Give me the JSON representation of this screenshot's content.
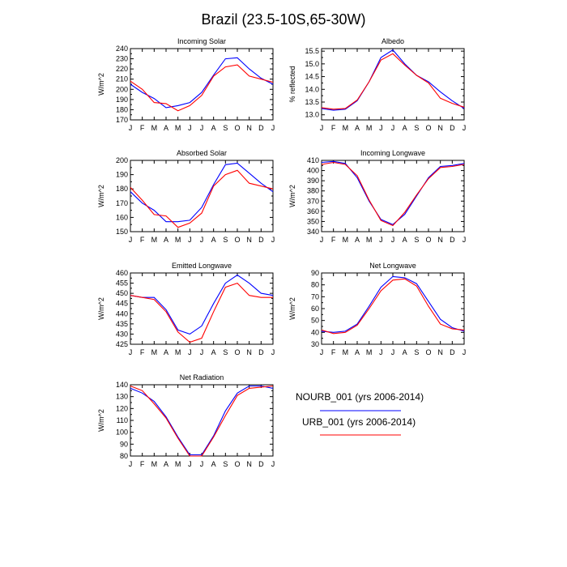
{
  "figure_title": "Brazil (23.5-10S,65-30W)",
  "colors": {
    "nourb": "#0000ff",
    "urb": "#ff0000",
    "axis": "#000000"
  },
  "legend": {
    "entries": [
      {
        "label": "NOURB_001 (yrs 2006-2014)",
        "color": "#0000ff"
      },
      {
        "label": "URB_001 (yrs 2006-2014)",
        "color": "#ff0000"
      }
    ]
  },
  "chart_data": [
    {
      "type": "line",
      "title": "Incoming Solar",
      "xlabel": "",
      "ylabel": "W/m^2",
      "categories": [
        "J",
        "F",
        "M",
        "A",
        "M",
        "J",
        "J",
        "A",
        "S",
        "O",
        "N",
        "D",
        "J"
      ],
      "ylim": [
        170,
        240
      ],
      "yticks": [
        170,
        180,
        190,
        200,
        210,
        220,
        230,
        240
      ],
      "series": [
        {
          "name": "NOURB_001 (yrs 2006-2014)",
          "color": "#0000ff",
          "values": [
            205,
            197,
            191,
            182,
            184,
            187,
            197,
            214,
            230,
            231,
            220,
            211,
            205
          ]
        },
        {
          "name": "URB_001 (yrs 2006-2014)",
          "color": "#ff0000",
          "values": [
            208,
            200,
            187,
            186,
            179,
            184,
            194,
            213,
            222,
            224,
            213,
            210,
            207
          ]
        }
      ]
    },
    {
      "type": "line",
      "title": "Albedo",
      "xlabel": "",
      "ylabel": "% reflected",
      "categories": [
        "J",
        "F",
        "M",
        "A",
        "M",
        "J",
        "J",
        "A",
        "S",
        "O",
        "N",
        "D",
        "J"
      ],
      "ylim": [
        12.8,
        15.6
      ],
      "yticks": [
        13.0,
        13.5,
        14.0,
        14.5,
        15.0,
        15.5
      ],
      "series": [
        {
          "name": "NOURB_001 (yrs 2006-2014)",
          "color": "#0000ff",
          "values": [
            13.25,
            13.18,
            13.22,
            13.55,
            14.3,
            15.25,
            15.55,
            15.0,
            14.55,
            14.3,
            13.9,
            13.55,
            13.25
          ]
        },
        {
          "name": "URB_001 (yrs 2006-2014)",
          "color": "#ff0000",
          "values": [
            13.28,
            13.22,
            13.25,
            13.58,
            14.3,
            15.15,
            15.4,
            14.95,
            14.55,
            14.25,
            13.65,
            13.45,
            13.3
          ]
        }
      ]
    },
    {
      "type": "line",
      "title": "Absorbed Solar",
      "xlabel": "",
      "ylabel": "W/m^2",
      "categories": [
        "J",
        "F",
        "M",
        "A",
        "M",
        "J",
        "J",
        "A",
        "S",
        "O",
        "N",
        "D",
        "J"
      ],
      "ylim": [
        150,
        200
      ],
      "yticks": [
        150,
        160,
        170,
        180,
        190,
        200
      ],
      "series": [
        {
          "name": "NOURB_001 (yrs 2006-2014)",
          "color": "#0000ff",
          "values": [
            178,
            170,
            165,
            157,
            157,
            158,
            167,
            183,
            197,
            198,
            191,
            184,
            178
          ]
        },
        {
          "name": "URB_001 (yrs 2006-2014)",
          "color": "#ff0000",
          "values": [
            181,
            172,
            162,
            161,
            153,
            156,
            163,
            182,
            190,
            193,
            184,
            182,
            180
          ]
        }
      ]
    },
    {
      "type": "line",
      "title": "Incoming Longwave",
      "xlabel": "",
      "ylabel": "W/m^2",
      "categories": [
        "J",
        "F",
        "M",
        "A",
        "M",
        "J",
        "J",
        "A",
        "S",
        "O",
        "N",
        "D",
        "J"
      ],
      "ylim": [
        340,
        410
      ],
      "yticks": [
        340,
        350,
        360,
        370,
        380,
        390,
        400,
        410
      ],
      "series": [
        {
          "name": "NOURB_001 (yrs 2006-2014)",
          "color": "#0000ff",
          "values": [
            408,
            409,
            407,
            393,
            370,
            352,
            347,
            357,
            375,
            393,
            404,
            405,
            407
          ]
        },
        {
          "name": "URB_001 (yrs 2006-2014)",
          "color": "#ff0000",
          "values": [
            406,
            408,
            406,
            395,
            371,
            351,
            346,
            359,
            376,
            392,
            403,
            404,
            406
          ]
        }
      ]
    },
    {
      "type": "line",
      "title": "Emitted Longwave",
      "xlabel": "",
      "ylabel": "W/m^2",
      "categories": [
        "J",
        "F",
        "M",
        "A",
        "M",
        "J",
        "J",
        "A",
        "S",
        "O",
        "N",
        "D",
        "J"
      ],
      "ylim": [
        425,
        460
      ],
      "yticks": [
        425,
        430,
        435,
        440,
        445,
        450,
        455,
        460
      ],
      "series": [
        {
          "name": "NOURB_001 (yrs 2006-2014)",
          "color": "#0000ff",
          "values": [
            449,
            448,
            448,
            442,
            432,
            430,
            434,
            445,
            455,
            459,
            455,
            450,
            449
          ]
        },
        {
          "name": "URB_001 (yrs 2006-2014)",
          "color": "#ff0000",
          "values": [
            449,
            448,
            447,
            441,
            431,
            426,
            428,
            441,
            453,
            455,
            449,
            448,
            448
          ]
        }
      ]
    },
    {
      "type": "line",
      "title": "Net Longwave",
      "xlabel": "",
      "ylabel": "W/m^2",
      "categories": [
        "J",
        "F",
        "M",
        "A",
        "M",
        "J",
        "J",
        "A",
        "S",
        "O",
        "N",
        "D",
        "J"
      ],
      "ylim": [
        30,
        90
      ],
      "yticks": [
        30,
        40,
        50,
        60,
        70,
        80,
        90
      ],
      "series": [
        {
          "name": "NOURB_001 (yrs 2006-2014)",
          "color": "#0000ff",
          "values": [
            41,
            40,
            41,
            47,
            62,
            78,
            87,
            86,
            81,
            66,
            51,
            44,
            41
          ]
        },
        {
          "name": "URB_001 (yrs 2006-2014)",
          "color": "#ff0000",
          "values": [
            42,
            39,
            40,
            46,
            60,
            75,
            84,
            85,
            79,
            62,
            47,
            43,
            42
          ]
        }
      ]
    },
    {
      "type": "line",
      "title": "Net Radiation",
      "xlabel": "",
      "ylabel": "W/m^2",
      "categories": [
        "J",
        "F",
        "M",
        "A",
        "M",
        "J",
        "J",
        "A",
        "S",
        "O",
        "N",
        "D",
        "J"
      ],
      "ylim": [
        80,
        140
      ],
      "yticks": [
        80,
        90,
        100,
        110,
        120,
        130,
        140
      ],
      "series": [
        {
          "name": "NOURB_001 (yrs 2006-2014)",
          "color": "#0000ff",
          "values": [
            137,
            133,
            126,
            113,
            96,
            81,
            81,
            97,
            118,
            133,
            139,
            139,
            137
          ]
        },
        {
          "name": "URB_001 (yrs 2006-2014)",
          "color": "#ff0000",
          "values": [
            139,
            135,
            124,
            112,
            95,
            80,
            80,
            96,
            114,
            131,
            137,
            138,
            139
          ]
        }
      ]
    }
  ]
}
